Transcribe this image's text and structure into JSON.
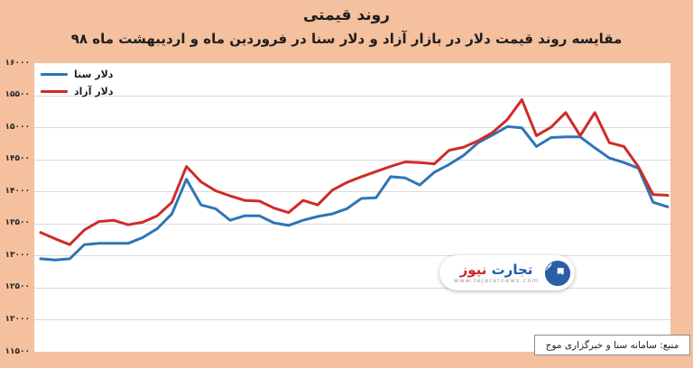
{
  "header": {
    "title": "روند قیمتی",
    "subtitle": "مقایسه روند قیمت دلار در بازار آزاد و دلار سنا در فروردین ماه و اردیبهشت ماه ۹۸"
  },
  "colors": {
    "background": "#F4C09E",
    "plot_background": "#ffffff",
    "gridline": "#d9d9d9",
    "sana_blue": "#2E75B6",
    "azad_red": "#CE2B28",
    "text": "#1e1e1e"
  },
  "watermark": {
    "brand_blue": "تجارت",
    "brand_red": "نیوز",
    "url": "www.tejaratnews.com",
    "icon": "arrow-up-right-in-blue-circle"
  },
  "source_box": {
    "text": "منبع: سامانه سنا و خبرگزاری موج"
  },
  "chart_data": {
    "type": "line",
    "title": "روند قیمتی",
    "subtitle": "مقایسه روند قیمت دلار در بازار آزاد و دلار سنا در فروردین ماه و اردیبهشت ماه ۹۸",
    "xlabel": "",
    "ylabel": "",
    "ylim": [
      11500,
      16000
    ],
    "y_tick_step": 500,
    "y_tick_labels": [
      "۱۶۰۰۰",
      "۱۵۵۰۰",
      "۱۵۰۰۰",
      "۱۴۵۰۰",
      "۱۴۰۰۰",
      "۱۳۵۰۰",
      "۱۳۰۰۰",
      "۱۲۵۰۰",
      "۱۲۰۰۰",
      "۱۱۵۰۰"
    ],
    "x_tick_labels_visible": false,
    "grid": "horizontal",
    "legend_position": "top-left",
    "series": [
      {
        "name": "دلار سنا",
        "color": "#2E75B6",
        "values": [
          12950,
          12930,
          12950,
          13170,
          13190,
          13190,
          13190,
          13280,
          13420,
          13650,
          14190,
          13790,
          13730,
          13550,
          13620,
          13620,
          13510,
          13470,
          13550,
          13610,
          13650,
          13730,
          13890,
          13900,
          14230,
          14210,
          14100,
          14300,
          14420,
          14560,
          14760,
          14880,
          15010,
          14990,
          14700,
          14840,
          14850,
          14850,
          14680,
          14520,
          14450,
          14360,
          13830,
          13760
        ]
      },
      {
        "name": "دلار آزاد",
        "color": "#CE2B28",
        "values": [
          13360,
          13260,
          13170,
          13400,
          13530,
          13550,
          13480,
          13520,
          13620,
          13830,
          14390,
          14150,
          14010,
          13930,
          13860,
          13850,
          13740,
          13670,
          13860,
          13790,
          14020,
          14140,
          14230,
          14310,
          14390,
          14460,
          14450,
          14430,
          14640,
          14690,
          14790,
          14920,
          15120,
          15430,
          14870,
          15000,
          15230,
          14870,
          15230,
          14760,
          14700,
          14380,
          13950,
          13940
        ]
      }
    ]
  }
}
